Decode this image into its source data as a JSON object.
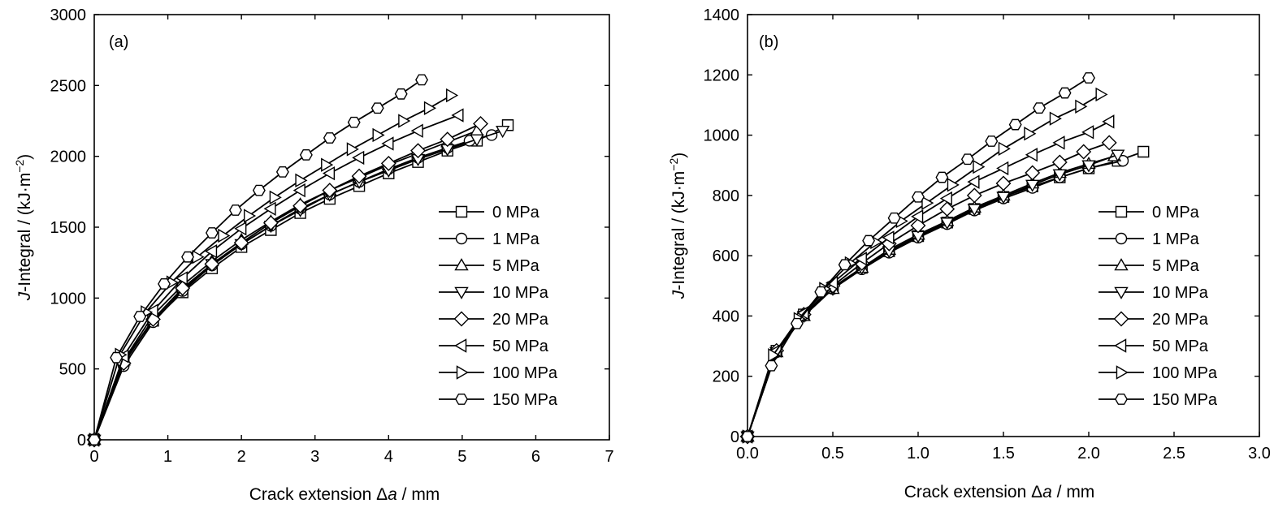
{
  "legend": [
    "0 MPa",
    "1 MPa",
    "5 MPa",
    "10 MPa",
    "20 MPa",
    "50 MPa",
    "100 MPa",
    "150 MPa"
  ],
  "marker_shapes": [
    "square",
    "circle",
    "triangle-up",
    "triangle-down",
    "diamond",
    "triangle-left",
    "triangle-right",
    "hexagon"
  ],
  "chart_data": [
    {
      "panel_label": "(a)",
      "type": "line",
      "xlabel": "Crack extension Δa / mm",
      "ylabel": "J-Integral / (kJ·m−2)",
      "xlim": [
        0,
        7
      ],
      "ylim": [
        0,
        3000
      ],
      "xticks": [
        "0",
        "1",
        "2",
        "3",
        "4",
        "5",
        "6",
        "7"
      ],
      "yticks": [
        "0",
        "500",
        "1000",
        "1500",
        "2000",
        "2500",
        "3000"
      ],
      "grid": false,
      "legend_position": "lower-right",
      "series": [
        {
          "name": "0 MPa",
          "x": [
            0,
            0.4,
            0.8,
            1.2,
            1.6,
            2.0,
            2.4,
            2.8,
            3.2,
            3.6,
            4.0,
            4.4,
            4.8,
            5.2,
            5.62
          ],
          "y": [
            0,
            560,
            840,
            1040,
            1210,
            1360,
            1480,
            1600,
            1700,
            1790,
            1880,
            1960,
            2040,
            2110,
            2220
          ]
        },
        {
          "name": "1 MPa",
          "x": [
            0,
            0.4,
            0.8,
            1.2,
            1.6,
            2.0,
            2.4,
            2.8,
            3.2,
            3.6,
            4.0,
            4.4,
            4.8,
            5.1,
            5.4
          ],
          "y": [
            0,
            520,
            830,
            1050,
            1230,
            1380,
            1510,
            1630,
            1730,
            1820,
            1910,
            1990,
            2060,
            2110,
            2150
          ]
        },
        {
          "name": "5 MPa",
          "x": [
            0,
            0.4,
            0.8,
            1.2,
            1.6,
            2.0,
            2.4,
            2.8,
            3.2,
            3.6,
            4.0,
            4.4,
            4.8,
            5.2
          ],
          "y": [
            0,
            560,
            880,
            1090,
            1260,
            1410,
            1540,
            1660,
            1760,
            1850,
            1940,
            2020,
            2100,
            2180
          ]
        },
        {
          "name": "10 MPa",
          "x": [
            0,
            0.4,
            0.8,
            1.2,
            1.6,
            2.0,
            2.4,
            2.8,
            3.2,
            3.6,
            4.0,
            4.4,
            4.8,
            5.2,
            5.55
          ],
          "y": [
            0,
            550,
            850,
            1060,
            1240,
            1380,
            1510,
            1620,
            1730,
            1820,
            1900,
            1980,
            2050,
            2120,
            2180
          ]
        },
        {
          "name": "20 MPa",
          "x": [
            0,
            0.4,
            0.8,
            1.2,
            1.6,
            2.0,
            2.4,
            2.8,
            3.2,
            3.6,
            4.0,
            4.4,
            4.8,
            5.25
          ],
          "y": [
            0,
            540,
            850,
            1070,
            1240,
            1390,
            1530,
            1650,
            1760,
            1860,
            1950,
            2040,
            2120,
            2230
          ]
        },
        {
          "name": "50 MPa",
          "x": [
            0,
            0.4,
            0.8,
            1.2,
            1.6,
            2.0,
            2.4,
            2.8,
            3.2,
            3.6,
            4.0,
            4.4,
            4.95
          ],
          "y": [
            0,
            590,
            910,
            1140,
            1330,
            1490,
            1630,
            1760,
            1880,
            1990,
            2090,
            2180,
            2290
          ]
        },
        {
          "name": "100 MPa",
          "x": [
            0,
            0.35,
            0.7,
            1.05,
            1.4,
            1.75,
            2.1,
            2.45,
            2.8,
            3.15,
            3.5,
            3.85,
            4.2,
            4.55,
            4.85
          ],
          "y": [
            0,
            600,
            900,
            1110,
            1290,
            1440,
            1580,
            1710,
            1830,
            1940,
            2050,
            2150,
            2250,
            2340,
            2430
          ]
        },
        {
          "name": "150 MPa",
          "x": [
            0,
            0.3,
            0.62,
            0.95,
            1.27,
            1.6,
            1.92,
            2.24,
            2.56,
            2.88,
            3.2,
            3.53,
            3.85,
            4.17,
            4.45
          ],
          "y": [
            0,
            580,
            870,
            1100,
            1290,
            1460,
            1620,
            1760,
            1890,
            2010,
            2130,
            2240,
            2340,
            2440,
            2540
          ]
        }
      ]
    },
    {
      "panel_label": "(b)",
      "type": "line",
      "xlabel": "Crack extension Δa / mm",
      "ylabel": "J-Integral / (kJ·m−2)",
      "xlim": [
        0,
        3.0
      ],
      "ylim": [
        0,
        1400
      ],
      "xticks": [
        "0.0",
        "0.5",
        "1.0",
        "1.5",
        "2.0",
        "2.5",
        "3.0"
      ],
      "yticks": [
        "0",
        "200",
        "400",
        "600",
        "800",
        "1000",
        "1200",
        "1400"
      ],
      "grid": false,
      "legend_position": "lower-right",
      "series": [
        {
          "name": "0 MPa",
          "x": [
            0,
            0.17,
            0.33,
            0.5,
            0.67,
            0.83,
            1.0,
            1.17,
            1.33,
            1.5,
            1.67,
            1.83,
            2.0,
            2.17,
            2.32
          ],
          "y": [
            0,
            285,
            405,
            495,
            560,
            615,
            665,
            710,
            755,
            795,
            830,
            860,
            890,
            915,
            945
          ]
        },
        {
          "name": "1 MPa",
          "x": [
            0,
            0.17,
            0.33,
            0.5,
            0.67,
            0.83,
            1.0,
            1.17,
            1.33,
            1.5,
            1.67,
            1.83,
            2.0,
            2.2
          ],
          "y": [
            0,
            280,
            400,
            490,
            555,
            610,
            660,
            705,
            750,
            790,
            825,
            860,
            890,
            915
          ]
        },
        {
          "name": "5 MPa",
          "x": [
            0,
            0.17,
            0.33,
            0.5,
            0.67,
            0.83,
            1.0,
            1.17,
            1.33,
            1.5,
            1.67,
            1.83,
            2.0,
            2.15
          ],
          "y": [
            0,
            280,
            400,
            490,
            560,
            620,
            670,
            715,
            760,
            800,
            840,
            875,
            905,
            930
          ]
        },
        {
          "name": "10 MPa",
          "x": [
            0,
            0.17,
            0.33,
            0.5,
            0.67,
            0.83,
            1.0,
            1.17,
            1.33,
            1.5,
            1.67,
            1.83,
            2.0,
            2.17
          ],
          "y": [
            0,
            280,
            400,
            490,
            560,
            615,
            665,
            710,
            755,
            795,
            835,
            870,
            900,
            935
          ]
        },
        {
          "name": "20 MPa",
          "x": [
            0,
            0.17,
            0.33,
            0.5,
            0.67,
            0.83,
            1.0,
            1.17,
            1.33,
            1.5,
            1.67,
            1.83,
            1.97,
            2.12
          ],
          "y": [
            0,
            285,
            405,
            500,
            575,
            640,
            700,
            755,
            800,
            840,
            875,
            910,
            945,
            975
          ]
        },
        {
          "name": "50 MPa",
          "x": [
            0,
            0.17,
            0.33,
            0.5,
            0.67,
            0.83,
            1.0,
            1.17,
            1.33,
            1.5,
            1.67,
            1.83,
            2.0,
            2.12
          ],
          "y": [
            0,
            285,
            410,
            510,
            590,
            660,
            730,
            790,
            845,
            890,
            935,
            975,
            1010,
            1045
          ]
        },
        {
          "name": "100 MPa",
          "x": [
            0,
            0.15,
            0.3,
            0.45,
            0.6,
            0.75,
            0.9,
            1.05,
            1.2,
            1.35,
            1.5,
            1.65,
            1.8,
            1.95,
            2.07
          ],
          "y": [
            0,
            270,
            390,
            490,
            575,
            645,
            715,
            775,
            835,
            895,
            955,
            1005,
            1055,
            1095,
            1135
          ]
        },
        {
          "name": "150 MPa",
          "x": [
            0,
            0.14,
            0.29,
            0.43,
            0.57,
            0.71,
            0.86,
            1.0,
            1.14,
            1.29,
            1.43,
            1.57,
            1.71,
            1.86,
            2.0
          ],
          "y": [
            0,
            235,
            375,
            480,
            570,
            650,
            725,
            795,
            860,
            920,
            980,
            1035,
            1090,
            1140,
            1190
          ]
        }
      ]
    }
  ]
}
